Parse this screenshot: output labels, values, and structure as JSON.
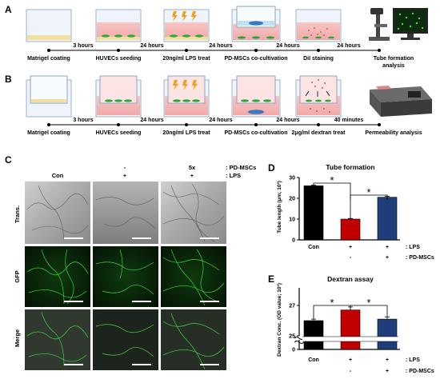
{
  "panel_letters": {
    "a": "A",
    "b": "B",
    "c": "C",
    "d": "D",
    "e": "E"
  },
  "workflow_a": {
    "steps": [
      "Matrigel coating",
      "HUVECs seeding",
      "20ng/ml LPS treat",
      "PD-MSCs co-cultivation",
      "DiI staining",
      "Tube formation analysis"
    ],
    "end_line1": "Tube formation",
    "end_line2": "analysis",
    "intervals": [
      "3 hours",
      "24 hours",
      "24 hours",
      "24 hours",
      "24 hours"
    ]
  },
  "workflow_b": {
    "steps": [
      "Matrigel coating",
      "HUVECs seeding",
      "20ng/ml LPS treat",
      "PD-MSCs co-cultivation",
      "2μg/ml dextran treat",
      "Permeability analysis"
    ],
    "intervals": [
      "3 hours",
      "24 hours",
      "24 hours",
      "24 hours",
      "40 minutes"
    ]
  },
  "micrographs": {
    "header_row1": [
      "",
      "-",
      "5x",
      ": PD-MSCs"
    ],
    "header_row2": [
      "Con",
      "+",
      "+",
      ": LPS"
    ],
    "row_labels": [
      "Trans.",
      "GFP",
      "Merge"
    ]
  },
  "colors": {
    "con": "#000000",
    "lps": "#c00000",
    "pdmsc": "#1f3d7a",
    "gfp": "#2fbf2f"
  },
  "chart_data": [
    {
      "type": "bar",
      "title": "Tube formation",
      "ylabel": "Tube length (μm; 10³)",
      "categories": [
        "Con",
        "LPS",
        "LPS + PD-MSCs"
      ],
      "values": [
        26,
        10,
        20.5
      ],
      "errors": [
        0.4,
        0.3,
        0.4
      ],
      "ylim": [
        0,
        30
      ],
      "yticks": [
        "0",
        "10",
        "20",
        "30"
      ],
      "x_label": "Con",
      "treatment_rows": [
        {
          "label": ": LPS",
          "signs": [
            "",
            "+",
            "+"
          ]
        },
        {
          "label": ": PD-MSCs",
          "signs": [
            "",
            "-",
            "+"
          ]
        }
      ],
      "significance": [
        "*",
        "*"
      ]
    },
    {
      "type": "bar",
      "title": "Dextran assay",
      "ylabel": "Dextran Conc. (OD value; 10³)",
      "categories": [
        "Con",
        "LPS",
        "LPS + PD-MSCs"
      ],
      "values": [
        26.0,
        26.7,
        26.1
      ],
      "errors": [
        0.1,
        0.2,
        0.15
      ],
      "ylim": [
        25,
        28
      ],
      "axis_break": true,
      "yticks": [
        "0",
        "25",
        "27"
      ],
      "x_label": "Con",
      "treatment_rows": [
        {
          "label": ": LPS",
          "signs": [
            "",
            "+",
            "+"
          ]
        },
        {
          "label": ": PD-MSCs",
          "signs": [
            "",
            "-",
            "+"
          ]
        }
      ],
      "significance": [
        "*",
        "*"
      ]
    }
  ]
}
